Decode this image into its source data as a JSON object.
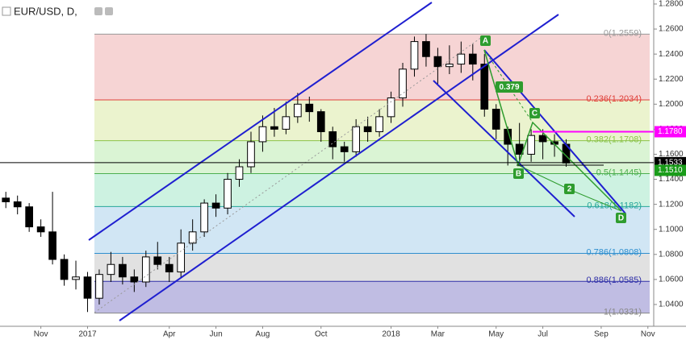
{
  "chart_data": {
    "type": "candlestick",
    "title": "EUR/USD, D,",
    "categories": [
      null,
      null,
      null,
      "Nov",
      null,
      null,
      null,
      "2017",
      null,
      null,
      null,
      null,
      null,
      null,
      "Apr",
      null,
      null,
      null,
      "Jun",
      null,
      null,
      null,
      "Aug",
      null,
      null,
      null,
      null,
      "Oct",
      null,
      null,
      null,
      null,
      null,
      "2018",
      null,
      null,
      null,
      "Mar",
      null,
      null,
      null,
      null,
      "May",
      null,
      null,
      null,
      "Jul",
      null,
      null,
      null,
      null,
      "Sep",
      null,
      null,
      null,
      "Nov"
    ],
    "open": [
      1.125,
      1.122,
      1.118,
      1.102,
      1.098,
      1.076,
      1.06,
      1.062,
      1.045,
      1.064,
      1.072,
      1.062,
      1.058,
      1.078,
      1.072,
      1.066,
      1.089,
      1.098,
      1.121,
      1.117,
      1.14,
      1.15,
      1.17,
      1.182,
      1.18,
      1.19,
      1.2,
      1.194,
      1.178,
      1.166,
      1.162,
      1.182,
      1.178,
      1.19,
      1.205,
      1.228,
      1.25,
      1.238,
      1.23,
      1.232,
      1.24,
      1.232,
      1.196,
      1.18,
      1.168,
      1.16,
      1.175,
      1.17,
      1.168,
      null,
      null,
      null,
      null,
      null,
      null,
      null
    ],
    "high": [
      1.13,
      1.127,
      1.121,
      1.108,
      1.13,
      1.08,
      1.075,
      1.066,
      1.068,
      1.082,
      1.078,
      1.068,
      1.083,
      1.09,
      1.078,
      1.1,
      1.108,
      1.124,
      1.128,
      1.145,
      1.156,
      1.178,
      1.191,
      1.197,
      1.202,
      1.209,
      1.206,
      1.196,
      1.182,
      1.17,
      1.188,
      1.19,
      1.196,
      1.21,
      1.233,
      1.254,
      1.256,
      1.245,
      1.247,
      1.25,
      1.248,
      1.24,
      1.2,
      1.182,
      1.185,
      1.18,
      1.18,
      1.176,
      1.172,
      null,
      null,
      null,
      null,
      null,
      null,
      null
    ],
    "low": [
      1.117,
      1.112,
      1.098,
      1.094,
      1.072,
      1.055,
      1.052,
      1.034,
      1.04,
      1.058,
      1.056,
      1.05,
      1.054,
      1.068,
      1.058,
      1.061,
      1.083,
      1.094,
      1.11,
      1.112,
      1.134,
      1.145,
      1.162,
      1.174,
      1.176,
      1.185,
      1.186,
      1.17,
      1.156,
      1.154,
      1.158,
      1.17,
      1.174,
      1.185,
      1.198,
      1.222,
      1.23,
      1.216,
      1.224,
      1.225,
      1.219,
      1.19,
      1.172,
      1.151,
      1.155,
      1.154,
      1.156,
      1.158,
      1.15,
      null,
      null,
      null,
      null,
      null,
      null,
      null
    ],
    "close": [
      1.122,
      1.118,
      1.102,
      1.098,
      1.076,
      1.06,
      1.062,
      1.045,
      1.064,
      1.072,
      1.062,
      1.058,
      1.078,
      1.072,
      1.066,
      1.089,
      1.098,
      1.121,
      1.117,
      1.14,
      1.15,
      1.17,
      1.182,
      1.18,
      1.19,
      1.2,
      1.194,
      1.178,
      1.166,
      1.162,
      1.182,
      1.178,
      1.19,
      1.205,
      1.228,
      1.25,
      1.238,
      1.23,
      1.232,
      1.24,
      1.232,
      1.196,
      1.18,
      1.168,
      1.16,
      1.175,
      1.17,
      1.168,
      1.153,
      null,
      null,
      null,
      null,
      null,
      null,
      null
    ],
    "up_color": "#ffffff",
    "down_color": "#000000",
    "ylim": [
      1.0226,
      1.2832
    ],
    "yticks": [
      {
        "value": 1.28,
        "label": "1.2800"
      },
      {
        "value": 1.26,
        "label": "1.2600"
      },
      {
        "value": 1.24,
        "label": "1.2400"
      },
      {
        "value": 1.22,
        "label": "1.2200"
      },
      {
        "value": 1.2,
        "label": "1.2000"
      },
      {
        "value": 1.18,
        "label": "1.1800"
      },
      {
        "value": 1.16,
        "label": "1.1600"
      },
      {
        "value": 1.14,
        "label": "1.1400"
      },
      {
        "value": 1.12,
        "label": "1.1200"
      },
      {
        "value": 1.1,
        "label": "1.1000"
      },
      {
        "value": 1.08,
        "label": "1.0800"
      },
      {
        "value": 1.06,
        "label": "1.0600"
      },
      {
        "value": 1.04,
        "label": "1.0400"
      }
    ],
    "fib_levels": [
      {
        "value": 1.2559,
        "label": "0(1.2559)",
        "color": "#999999",
        "fill": "#f4cccc"
      },
      {
        "value": 1.2034,
        "label": "0.236(1.2034)",
        "color": "#e0403a",
        "fill": "#e8f1c6"
      },
      {
        "value": 1.1708,
        "label": "0.382(1.1708)",
        "color": "#8bc34a",
        "fill": "#d3f2cc"
      },
      {
        "value": 1.1445,
        "label": "0.5(1.1445)",
        "color": "#4caf50",
        "fill": "#c4f0dc"
      },
      {
        "value": 1.1182,
        "label": "0.618(1.1182)",
        "color": "#26a69a",
        "fill": "#c9e2f2"
      },
      {
        "value": 1.0808,
        "label": "0.786(1.0808)",
        "color": "#2f8fcf",
        "fill": "#dcdcdc"
      },
      {
        "value": 1.0585,
        "label": "0.886(1.0585)",
        "color": "#2f2fa8",
        "fill": "#b5b2de"
      },
      {
        "value": 1.0331,
        "label": "1(1.0331)",
        "color": "#888888"
      }
    ],
    "price_markers": [
      {
        "value": 1.178,
        "label": "1.1780",
        "color": "#ff00ff"
      },
      {
        "value": 1.1533,
        "label": "1.1533",
        "color": "#000000"
      },
      {
        "value": 1.151,
        "label": "1.1510",
        "color": "#1a9c1a"
      }
    ],
    "annotations": [
      "A",
      "B",
      "C",
      "D",
      "2",
      "0.379"
    ]
  }
}
